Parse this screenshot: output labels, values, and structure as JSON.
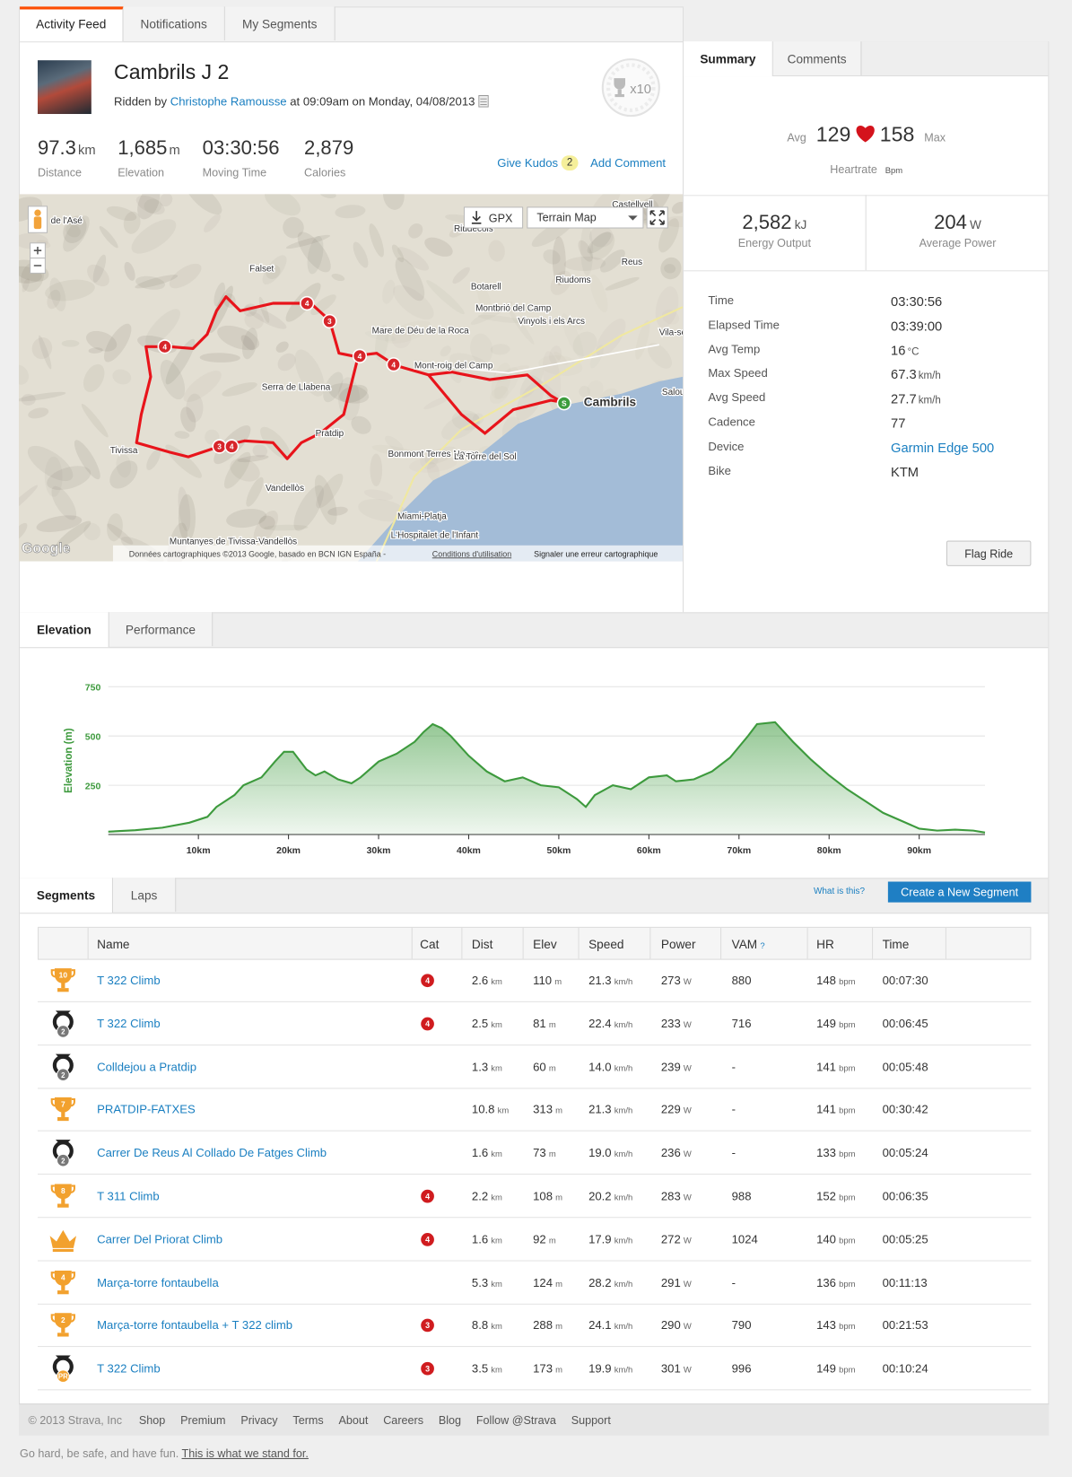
{
  "nav_tabs": [
    "Activity Feed",
    "Notifications",
    "My Segments"
  ],
  "activity": {
    "title": "Cambrils J 2",
    "ridden_by": "Ridden by",
    "athlete": "Christophe Ramousse",
    "when": "at 09:09am on Monday, 04/08/2013",
    "badge_count": "x10",
    "stats": [
      {
        "value": "97.3",
        "unit": "km",
        "label": "Distance"
      },
      {
        "value": "1,685",
        "unit": "m",
        "label": "Elevation"
      },
      {
        "value": "03:30:56",
        "label": "Moving Time"
      },
      {
        "value": "2,879",
        "label": "Calories"
      }
    ],
    "give_kudos": "Give Kudos",
    "kudos_count": "2",
    "add_comment": "Add Comment"
  },
  "map": {
    "gpx": "GPX",
    "map_type": "Terrain Map",
    "logo": "Google",
    "attribution": "Données cartographiques ©2013 Google, basado en BCN IGN España -",
    "terms": "Conditions d'utilisation",
    "report": "Signaler une erreur cartographique",
    "places": [
      "Castellvell",
      "Riudecols",
      "Falset",
      "Reus",
      "Riudoms",
      "Botarell",
      "Montbrió del Camp",
      "Vinyols i els Arcs",
      "Mare de Déu de la Roca",
      "Mont-roig del Camp",
      "Vila-se",
      "Serra de Llabena",
      "Salou",
      "Cambrils",
      "Pratdip",
      "Tivissa",
      "Bonmont Terres Noves",
      "La Torre del Sol",
      "Vandellòs",
      "Miami-Platja",
      "L'Hospitalet de l'Infant",
      "Muntanyes de Tivissa-Vandellòs",
      "de l'Asé"
    ],
    "markers": [
      "4",
      "3",
      "4",
      "4",
      "4",
      "3",
      "4",
      "S"
    ]
  },
  "summary": {
    "tabs": [
      "Summary",
      "Comments"
    ],
    "hr_avg_label": "Avg",
    "hr_avg": "129",
    "hr_max": "158",
    "hr_max_label": "Max",
    "hr_label": "Heartrate",
    "hr_unit": "Bpm",
    "energy": {
      "value": "2,582",
      "unit": "kJ",
      "label": "Energy Output"
    },
    "power": {
      "value": "204",
      "unit": "W",
      "label": "Average Power"
    },
    "details": [
      {
        "label": "Time",
        "value": "03:30:56"
      },
      {
        "label": "Elapsed Time",
        "value": "03:39:00"
      },
      {
        "label": "Avg Temp",
        "value": "16",
        "unit": "°C"
      },
      {
        "label": "Max Speed",
        "value": "67.3",
        "unit": "km/h"
      },
      {
        "label": "Avg Speed",
        "value": "27.7",
        "unit": "km/h"
      },
      {
        "label": "Cadence",
        "value": "77"
      },
      {
        "label": "Device",
        "value": "Garmin Edge 500",
        "link": true
      },
      {
        "label": "Bike",
        "value": "KTM"
      }
    ],
    "flag": "Flag Ride"
  },
  "chart_tabs": [
    "Elevation",
    "Performance"
  ],
  "chart_data": {
    "type": "area",
    "ylabel": "Elevation (m)",
    "color": "#3d9a3d",
    "x": [
      0,
      3,
      6,
      9,
      11,
      12,
      14,
      15,
      17,
      18.5,
      19.5,
      20.5,
      22,
      23,
      24,
      25.5,
      27,
      28,
      30,
      32,
      34,
      35,
      36,
      37,
      38,
      40,
      42,
      44,
      46,
      48,
      50,
      52,
      53,
      54,
      56,
      58,
      60,
      62,
      63,
      65,
      67,
      69,
      71,
      72,
      74,
      76,
      78,
      80,
      82,
      84,
      86,
      88,
      90,
      92,
      94,
      96,
      97.3
    ],
    "values": [
      15,
      22,
      35,
      60,
      90,
      140,
      200,
      250,
      290,
      370,
      420,
      420,
      330,
      300,
      320,
      280,
      260,
      290,
      370,
      410,
      470,
      520,
      560,
      540,
      500,
      400,
      320,
      270,
      290,
      250,
      240,
      180,
      140,
      200,
      250,
      230,
      290,
      300,
      270,
      280,
      320,
      390,
      500,
      560,
      570,
      470,
      380,
      300,
      230,
      170,
      110,
      70,
      30,
      20,
      25,
      20,
      10
    ],
    "xlim": [
      0,
      97.3
    ],
    "ylim": [
      0,
      750
    ],
    "yticks": [
      250,
      500,
      750
    ],
    "xticks": [
      {
        "value": 10,
        "label": "10km"
      },
      {
        "value": 20,
        "label": "20km"
      },
      {
        "value": 30,
        "label": "30km"
      },
      {
        "value": 40,
        "label": "40km"
      },
      {
        "value": 50,
        "label": "50km"
      },
      {
        "value": 60,
        "label": "60km"
      },
      {
        "value": 70,
        "label": "70km"
      },
      {
        "value": 80,
        "label": "80km"
      },
      {
        "value": 90,
        "label": "90km"
      }
    ],
    "grid": true
  },
  "segments": {
    "tabs": [
      "Segments",
      "Laps"
    ],
    "what": "What is this?",
    "create": "Create a New Segment",
    "columns": [
      "Name",
      "Cat",
      "Dist",
      "Elev",
      "Speed",
      "Power",
      "VAM",
      "HR",
      "Time"
    ],
    "vam_help": "?",
    "units": {
      "dist": "km",
      "elev": "m",
      "speed": "km/h",
      "power": "W",
      "hr": "bpm"
    },
    "rows": [
      {
        "badge": "trophy",
        "rank": "10",
        "name": "T 322 Climb",
        "cat": "4",
        "dist": "2.6",
        "elev": "110",
        "speed": "21.3",
        "power": "273",
        "vam": "880",
        "hr": "148",
        "time": "00:07:30"
      },
      {
        "badge": "medal",
        "rank": "2",
        "name": "T 322 Climb",
        "cat": "4",
        "dist": "2.5",
        "elev": "81",
        "speed": "22.4",
        "power": "233",
        "vam": "716",
        "hr": "149",
        "time": "00:06:45"
      },
      {
        "badge": "medal",
        "rank": "2",
        "name": "Colldejou a Pratdip",
        "dist": "1.3",
        "elev": "60",
        "speed": "14.0",
        "power": "239",
        "vam": "-",
        "hr": "141",
        "time": "00:05:48"
      },
      {
        "badge": "trophy",
        "rank": "7",
        "name": "PRATDIP-FATXES",
        "dist": "10.8",
        "elev": "313",
        "speed": "21.3",
        "power": "229",
        "vam": "-",
        "hr": "141",
        "time": "00:30:42"
      },
      {
        "badge": "medal",
        "rank": "2",
        "name": "Carrer De Reus Al Collado De Fatges Climb",
        "dist": "1.6",
        "elev": "73",
        "speed": "19.0",
        "power": "236",
        "vam": "-",
        "hr": "133",
        "time": "00:05:24"
      },
      {
        "badge": "trophy",
        "rank": "8",
        "name": "T 311 Climb",
        "cat": "4",
        "dist": "2.2",
        "elev": "108",
        "speed": "20.2",
        "power": "283",
        "vam": "988",
        "hr": "152",
        "time": "00:06:35"
      },
      {
        "badge": "crown",
        "name": "Carrer Del Priorat Climb",
        "cat": "4",
        "dist": "1.6",
        "elev": "92",
        "speed": "17.9",
        "power": "272",
        "vam": "1024",
        "hr": "140",
        "time": "00:05:25"
      },
      {
        "badge": "trophy",
        "rank": "4",
        "name": "Marça-torre fontaubella",
        "dist": "5.3",
        "elev": "124",
        "speed": "28.2",
        "power": "291",
        "vam": "-",
        "hr": "136",
        "time": "00:11:13"
      },
      {
        "badge": "trophy",
        "rank": "2",
        "name": "Marça-torre fontaubella + T 322 climb",
        "cat": "3",
        "dist": "8.8",
        "elev": "288",
        "speed": "24.1",
        "power": "290",
        "vam": "790",
        "hr": "143",
        "time": "00:21:53"
      },
      {
        "badge": "medal",
        "rank": "PR",
        "name": "T 322 Climb",
        "cat": "3",
        "dist": "3.5",
        "elev": "173",
        "speed": "19.9",
        "power": "301",
        "vam": "996",
        "hr": "149",
        "time": "00:10:24"
      }
    ]
  },
  "footer": {
    "copyright": "© 2013 Strava, Inc",
    "links": [
      "Shop",
      "Premium",
      "Privacy",
      "Terms",
      "About",
      "Careers",
      "Blog",
      "Follow @Strava",
      "Support"
    ],
    "tagline": "Go hard, be safe, and have fun.",
    "tagline_link": "This is what we stand for."
  }
}
